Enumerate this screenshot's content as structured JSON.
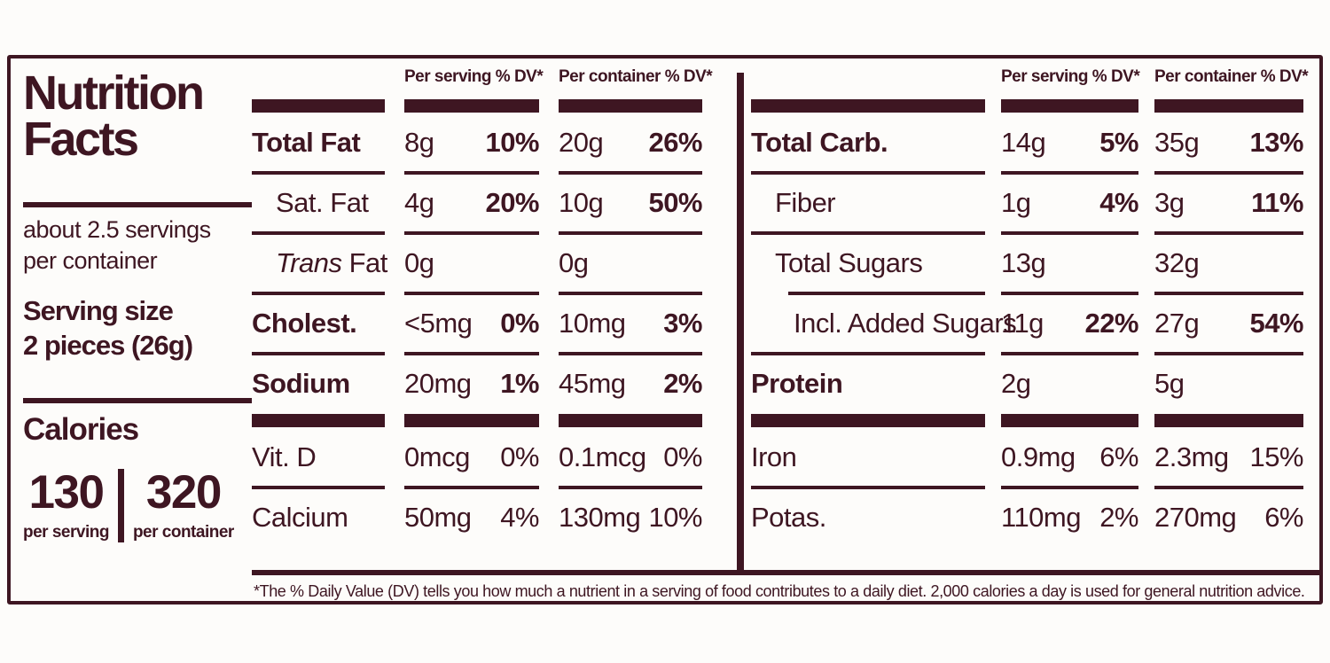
{
  "colors": {
    "ink": "#3e1622",
    "background": "#fdfcfa"
  },
  "left_panel": {
    "title_line1": "Nutrition",
    "title_line2": "Facts",
    "servings_line1": "about 2.5 servings",
    "servings_line2": "per container",
    "serving_size_label": "Serving size",
    "serving_size_value": "2 pieces (26g)",
    "calories_label": "Calories",
    "calories_per_serving": "130",
    "calories_per_container": "320",
    "per_serving_label": "per serving",
    "per_container_label": "per container"
  },
  "columns": {
    "per_serving": "Per serving % DV*",
    "per_container": "Per container % DV*"
  },
  "tables": {
    "mid": [
      {
        "name": "Total Fat",
        "bold": true,
        "indent": 0,
        "serving": {
          "amount": "8g",
          "dv": "10%"
        },
        "container": {
          "amount": "20g",
          "dv": "26%"
        },
        "dv_bold": true
      },
      {
        "name": "Sat. Fat",
        "bold": false,
        "indent": 1,
        "serving": {
          "amount": "4g",
          "dv": "20%"
        },
        "container": {
          "amount": "10g",
          "dv": "50%"
        },
        "dv_bold": true
      },
      {
        "name": "Trans Fat",
        "bold": false,
        "indent": 1,
        "italic_words": 1,
        "serving": {
          "amount": "0g",
          "dv": ""
        },
        "container": {
          "amount": "0g",
          "dv": ""
        },
        "dv_bold": false
      },
      {
        "name": "Cholest.",
        "bold": true,
        "indent": 0,
        "serving": {
          "amount": "<5mg",
          "dv": "0%"
        },
        "container": {
          "amount": "10mg",
          "dv": "3%"
        },
        "dv_bold": true
      },
      {
        "name": "Sodium",
        "bold": true,
        "indent": 0,
        "serving": {
          "amount": "20mg",
          "dv": "1%"
        },
        "container": {
          "amount": "45mg",
          "dv": "2%"
        },
        "dv_bold": true,
        "bar_after": true
      },
      {
        "name": "Vit. D",
        "bold": false,
        "indent": 0,
        "serving": {
          "amount": "0mcg",
          "dv": "0%"
        },
        "container": {
          "amount": "0.1mcg",
          "dv": "0%"
        },
        "dv_bold": false
      },
      {
        "name": "Calcium",
        "bold": false,
        "indent": 0,
        "serving": {
          "amount": "50mg",
          "dv": "4%"
        },
        "container": {
          "amount": "130mg",
          "dv": "10%"
        },
        "dv_bold": false
      }
    ],
    "right": [
      {
        "name": "Total Carb.",
        "bold": true,
        "indent": 0,
        "serving": {
          "amount": "14g",
          "dv": "5%"
        },
        "container": {
          "amount": "35g",
          "dv": "13%"
        },
        "dv_bold": true
      },
      {
        "name": "Fiber",
        "bold": false,
        "indent": 1,
        "serving": {
          "amount": "1g",
          "dv": "4%"
        },
        "container": {
          "amount": "3g",
          "dv": "11%"
        },
        "dv_bold": true
      },
      {
        "name": "Total Sugars",
        "bold": false,
        "indent": 1,
        "serving": {
          "amount": "13g",
          "dv": ""
        },
        "container": {
          "amount": "32g",
          "dv": ""
        },
        "dv_bold": false,
        "sep_after_indent": true
      },
      {
        "name": "Incl. Added Sugars",
        "bold": false,
        "indent": 2,
        "serving": {
          "amount": "11g",
          "dv": "22%"
        },
        "container": {
          "amount": "27g",
          "dv": "54%"
        },
        "dv_bold": true
      },
      {
        "name": "Protein",
        "bold": true,
        "indent": 0,
        "serving": {
          "amount": "2g",
          "dv": ""
        },
        "container": {
          "amount": "5g",
          "dv": ""
        },
        "dv_bold": false,
        "bar_after": true
      },
      {
        "name": "Iron",
        "bold": false,
        "indent": 0,
        "serving": {
          "amount": "0.9mg",
          "dv": "6%"
        },
        "container": {
          "amount": "2.3mg",
          "dv": "15%"
        },
        "dv_bold": false
      },
      {
        "name": "Potas.",
        "bold": false,
        "indent": 0,
        "serving": {
          "amount": "110mg",
          "dv": "2%"
        },
        "container": {
          "amount": "270mg",
          "dv": "6%"
        },
        "dv_bold": false
      }
    ]
  },
  "footnote": "*The % Daily Value (DV) tells you how much a nutrient in a serving of food contributes to a daily diet. 2,000 calories a day is used for general nutrition advice."
}
